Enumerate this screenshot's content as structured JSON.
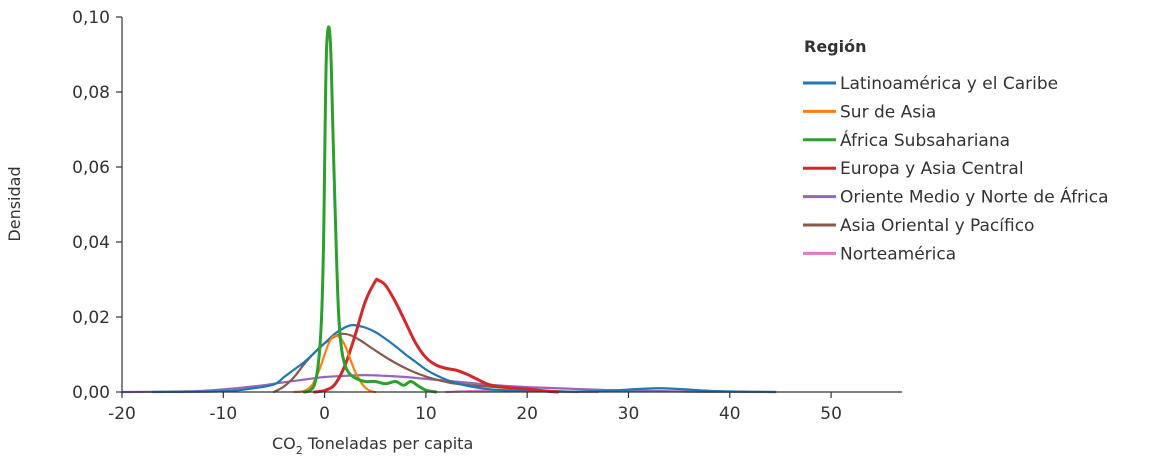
{
  "chart_data": {
    "type": "line",
    "title": "",
    "xlabel_main": "CO",
    "xlabel_sub": "2",
    "xlabel_rest": " Toneladas per capita",
    "ylabel": "Densidad",
    "xlim": [
      -20,
      57
    ],
    "ylim": [
      0,
      0.1
    ],
    "x_ticks": [
      -20,
      -10,
      0,
      10,
      20,
      30,
      40,
      50
    ],
    "y_ticks": [
      0,
      0.02,
      0.04,
      0.06,
      0.08,
      0.1
    ],
    "y_tick_labels": [
      "0,00",
      "0,02",
      "0,04",
      "0,06",
      "0,08",
      "0,10"
    ],
    "grid": false,
    "legend_title": "Región",
    "legend_position": "top-right",
    "series": [
      {
        "name": "Latinoamérica y el Caribe",
        "color": "#1f77b4",
        "points": [
          [
            -17,
            0
          ],
          [
            -10,
            0.0002
          ],
          [
            -7,
            0.001
          ],
          [
            -5,
            0.002
          ],
          [
            -4,
            0.004
          ],
          [
            -3,
            0.006
          ],
          [
            -2,
            0.008
          ],
          [
            -1,
            0.0105
          ],
          [
            0,
            0.013
          ],
          [
            1,
            0.0155
          ],
          [
            2,
            0.0172
          ],
          [
            2.6,
            0.0178
          ],
          [
            3,
            0.0178
          ],
          [
            4,
            0.0172
          ],
          [
            5,
            0.016
          ],
          [
            6,
            0.0142
          ],
          [
            7,
            0.0122
          ],
          [
            8,
            0.01
          ],
          [
            9,
            0.008
          ],
          [
            10,
            0.006
          ],
          [
            11,
            0.0045
          ],
          [
            12,
            0.0033
          ],
          [
            13,
            0.0024
          ],
          [
            14,
            0.0017
          ],
          [
            16,
            0.0008
          ],
          [
            18,
            0.0004
          ],
          [
            20,
            0.0002
          ],
          [
            25,
            0.0001
          ],
          [
            28,
            0.0003
          ],
          [
            31,
            0.0008
          ],
          [
            33,
            0.001
          ],
          [
            35,
            0.0008
          ],
          [
            38,
            0.0003
          ],
          [
            41,
            0.0001
          ],
          [
            44.5,
            0
          ]
        ]
      },
      {
        "name": "Sur de Asia",
        "color": "#ff7f0e",
        "points": [
          [
            -3,
            0
          ],
          [
            -2,
            0.0003
          ],
          [
            -1.2,
            0.002
          ],
          [
            -0.5,
            0.006
          ],
          [
            0,
            0.01
          ],
          [
            0.5,
            0.0135
          ],
          [
            1,
            0.015
          ],
          [
            1.5,
            0.0145
          ],
          [
            2,
            0.0125
          ],
          [
            2.5,
            0.009
          ],
          [
            3,
            0.0055
          ],
          [
            3.5,
            0.003
          ],
          [
            4,
            0.0012
          ],
          [
            4.5,
            0.0003
          ],
          [
            5,
            0
          ]
        ]
      },
      {
        "name": "África Subsahariana",
        "color": "#2ca02c",
        "points": [
          [
            -2,
            0
          ],
          [
            -1.5,
            0.0003
          ],
          [
            -1,
            0.002
          ],
          [
            -0.6,
            0.008
          ],
          [
            -0.3,
            0.02
          ],
          [
            -0.1,
            0.04
          ],
          [
            0,
            0.06
          ],
          [
            0.1,
            0.08
          ],
          [
            0.2,
            0.092
          ],
          [
            0.35,
            0.097
          ],
          [
            0.5,
            0.096
          ],
          [
            0.65,
            0.088
          ],
          [
            0.8,
            0.072
          ],
          [
            1,
            0.052
          ],
          [
            1.2,
            0.034
          ],
          [
            1.4,
            0.02
          ],
          [
            1.7,
            0.011
          ],
          [
            2.1,
            0.0065
          ],
          [
            2.6,
            0.0045
          ],
          [
            3.2,
            0.0035
          ],
          [
            4,
            0.0028
          ],
          [
            5,
            0.0028
          ],
          [
            6,
            0.0022
          ],
          [
            7,
            0.0028
          ],
          [
            7.8,
            0.0018
          ],
          [
            8.5,
            0.0028
          ],
          [
            9.2,
            0.0017
          ],
          [
            10,
            0.0005
          ],
          [
            11,
            0
          ]
        ]
      },
      {
        "name": "Europa y Asia Central",
        "color": "#d62728",
        "points": [
          [
            -1,
            0
          ],
          [
            0,
            0.0004
          ],
          [
            1,
            0.002
          ],
          [
            2,
            0.007
          ],
          [
            3,
            0.015
          ],
          [
            4,
            0.024
          ],
          [
            5,
            0.0295
          ],
          [
            5.3,
            0.0298
          ],
          [
            6,
            0.0285
          ],
          [
            7,
            0.024
          ],
          [
            8,
            0.0185
          ],
          [
            9,
            0.013
          ],
          [
            10,
            0.0092
          ],
          [
            11,
            0.0072
          ],
          [
            12,
            0.0063
          ],
          [
            13,
            0.0058
          ],
          [
            14,
            0.0048
          ],
          [
            15,
            0.0035
          ],
          [
            16,
            0.0022
          ],
          [
            17,
            0.0015
          ],
          [
            18,
            0.0012
          ],
          [
            19,
            0.001
          ],
          [
            20,
            0.0008
          ],
          [
            21,
            0.0005
          ],
          [
            22,
            0.0002
          ],
          [
            23,
            0
          ]
        ]
      },
      {
        "name": "Oriente Medio y Norte de África",
        "color": "#9467bd",
        "points": [
          [
            -20,
            0
          ],
          [
            -15,
            0.0001
          ],
          [
            -12,
            0.0003
          ],
          [
            -10,
            0.0007
          ],
          [
            -8,
            0.0012
          ],
          [
            -6,
            0.0018
          ],
          [
            -4,
            0.0026
          ],
          [
            -2,
            0.0033
          ],
          [
            0,
            0.004
          ],
          [
            2,
            0.0043
          ],
          [
            4,
            0.0045
          ],
          [
            6,
            0.0043
          ],
          [
            8,
            0.004
          ],
          [
            10,
            0.0035
          ],
          [
            12,
            0.003
          ],
          [
            14,
            0.0025
          ],
          [
            16,
            0.002
          ],
          [
            18,
            0.0016
          ],
          [
            20,
            0.0013
          ],
          [
            24,
            0.0009
          ],
          [
            28,
            0.0005
          ],
          [
            32,
            0.0003
          ],
          [
            36,
            0.0001
          ],
          [
            40,
            5e-05
          ],
          [
            44.5,
            0
          ]
        ]
      },
      {
        "name": "Asia Oriental y Pacífico",
        "color": "#8c564b",
        "points": [
          [
            -5,
            0
          ],
          [
            -4,
            0.0015
          ],
          [
            -3,
            0.004
          ],
          [
            -2,
            0.0075
          ],
          [
            -1,
            0.0105
          ],
          [
            0,
            0.013
          ],
          [
            1,
            0.0148
          ],
          [
            1.7,
            0.0155
          ],
          [
            2.5,
            0.0152
          ],
          [
            3.5,
            0.0138
          ],
          [
            4.5,
            0.012
          ],
          [
            5.5,
            0.0102
          ],
          [
            6.5,
            0.0085
          ],
          [
            7.5,
            0.007
          ],
          [
            8.5,
            0.0057
          ],
          [
            9.5,
            0.0046
          ],
          [
            10.5,
            0.0037
          ],
          [
            11.5,
            0.003
          ],
          [
            12.5,
            0.0024
          ],
          [
            14,
            0.0019
          ],
          [
            16,
            0.0015
          ],
          [
            18,
            0.0011
          ],
          [
            20,
            0.0006
          ],
          [
            22,
            0.0003
          ],
          [
            25,
            0
          ]
        ]
      },
      {
        "name": "Norteamérica",
        "color": "#e377c2",
        "points": [
          [
            12,
            0
          ],
          [
            15,
            0.0003
          ],
          [
            18,
            0.0005
          ],
          [
            21,
            0.0003
          ],
          [
            24,
            0.0001
          ],
          [
            27,
            0
          ]
        ]
      }
    ]
  }
}
